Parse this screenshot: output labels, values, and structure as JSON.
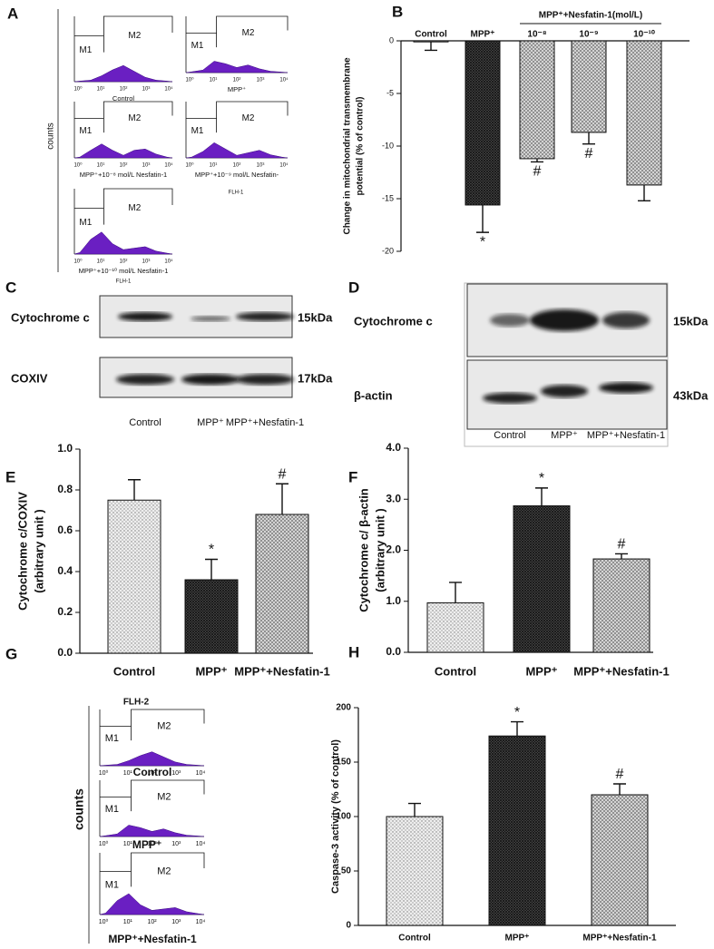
{
  "panel_labels": [
    "A",
    "B",
    "C",
    "D",
    "E",
    "F",
    "G",
    "H"
  ],
  "flow_a": {
    "ylabel": "counts",
    "gates": [
      "M1",
      "M2"
    ],
    "xtick_labels": [
      "10⁰",
      "10¹",
      "10²",
      "10³",
      "10⁴"
    ],
    "captions": [
      "Control",
      "MPP⁺",
      "MPP⁺+10⁻⁸ mol/L Nesfatin-1",
      "MPP⁺+10⁻⁹ mol/L Nesfatin-",
      "MPP⁺+10⁻¹⁰ mol/L Nesfatin-1"
    ],
    "xlabels": [
      "FLH-1",
      "FLH-1"
    ]
  },
  "flow_g": {
    "title": "FLH-2",
    "ylabel": "counts",
    "gates": [
      "M1",
      "M2"
    ],
    "xtick_labels": [
      "10⁰",
      "10¹",
      "10²",
      "10³",
      "10⁴"
    ],
    "captions": [
      "Control",
      "MPP⁺",
      "MPP⁺+Nesfatin-1"
    ]
  },
  "blot_c": {
    "rows": [
      {
        "label": "Cytochrome c",
        "size": "15kDa"
      },
      {
        "label": "COXIV",
        "size": "17kDa"
      }
    ],
    "lanes": [
      "Control",
      "MPP⁺",
      "MPP⁺+Nesfatin-1"
    ]
  },
  "blot_d": {
    "rows": [
      {
        "label": "Cytochrome c",
        "size": "15kDa"
      },
      {
        "label": "β-actin",
        "size": "43kDa"
      }
    ],
    "lanes": [
      "Control",
      "MPP⁺",
      "MPP⁺+Nesfatin-1"
    ]
  },
  "chart_data": [
    {
      "type": "bar",
      "ylabel": [
        "Change in mitochondrial transmembrane",
        "potential (% of control)"
      ],
      "categories": [
        "Control",
        "MPP⁺",
        "10⁻⁸",
        "10⁻⁹",
        "10⁻¹⁰"
      ],
      "group_label": "MPP⁺+Nesfatin-1(mol/L)",
      "values": [
        -0.1,
        -15.6,
        -11.2,
        -8.7,
        -13.7
      ],
      "errors": [
        0.8,
        2.6,
        0.3,
        1.1,
        1.5
      ],
      "patterns": [
        "light",
        "dark",
        "medium",
        "medium",
        "medium"
      ],
      "ylim": [
        -20,
        0
      ],
      "yticks": [
        0,
        -5,
        -10,
        -15,
        -20
      ],
      "annotations": [
        {
          "text": "*",
          "category": 1
        },
        {
          "text": "#",
          "category": 2
        },
        {
          "text": "#",
          "category": 3
        }
      ]
    },
    {
      "type": "bar",
      "ylabel": [
        "Cytochrome c/COXIV",
        "(arbitrary unit )"
      ],
      "categories": [
        "Control",
        "MPP⁺",
        "MPP⁺+Nesfatin-1"
      ],
      "values": [
        0.75,
        0.36,
        0.68
      ],
      "errors": [
        0.1,
        0.1,
        0.15
      ],
      "patterns": [
        "light",
        "dark",
        "medium"
      ],
      "ylim": [
        0,
        1
      ],
      "yticks": [
        {
          "value": 0,
          "label": "0.0"
        },
        0.2,
        0.4,
        0.6,
        0.8,
        {
          "value": 1,
          "label": "1.0"
        }
      ],
      "annotations": [
        {
          "text": "*",
          "category": 1
        },
        {
          "text": "#",
          "category": 2
        }
      ]
    },
    {
      "type": "bar",
      "ylabel": [
        "Cytochrome c/ β-actin",
        "(arbitrary unit )"
      ],
      "categories": [
        "Control",
        "MPP⁺",
        "MPP⁺+Nesfatin-1"
      ],
      "values": [
        0.97,
        2.87,
        1.83
      ],
      "errors": [
        0.4,
        0.35,
        0.1
      ],
      "patterns": [
        "light",
        "dark",
        "medium"
      ],
      "ylim": [
        0,
        4
      ],
      "yticks": [
        {
          "value": 0,
          "label": "0.0"
        },
        {
          "value": 1,
          "label": "1.0"
        },
        {
          "value": 2,
          "label": "2.0"
        },
        {
          "value": 3,
          "label": "3.0"
        },
        {
          "value": 4,
          "label": "4.0"
        }
      ],
      "annotations": [
        {
          "text": "*",
          "category": 1
        },
        {
          "text": "#",
          "category": 2
        }
      ]
    },
    {
      "type": "bar",
      "ylabel": [
        "Caspase-3 activity (% of control)"
      ],
      "categories": [
        "Control",
        "MPP⁺",
        "MPP⁺+Nesfatin-1"
      ],
      "values": [
        100,
        174,
        120
      ],
      "errors": [
        12,
        13,
        10
      ],
      "patterns": [
        "light",
        "dark",
        "medium"
      ],
      "ylim": [
        0,
        200
      ],
      "yticks": [
        0,
        50,
        100,
        150,
        200
      ],
      "annotations": [
        {
          "text": "*",
          "category": 1
        },
        {
          "text": "#",
          "category": 2
        }
      ]
    }
  ]
}
